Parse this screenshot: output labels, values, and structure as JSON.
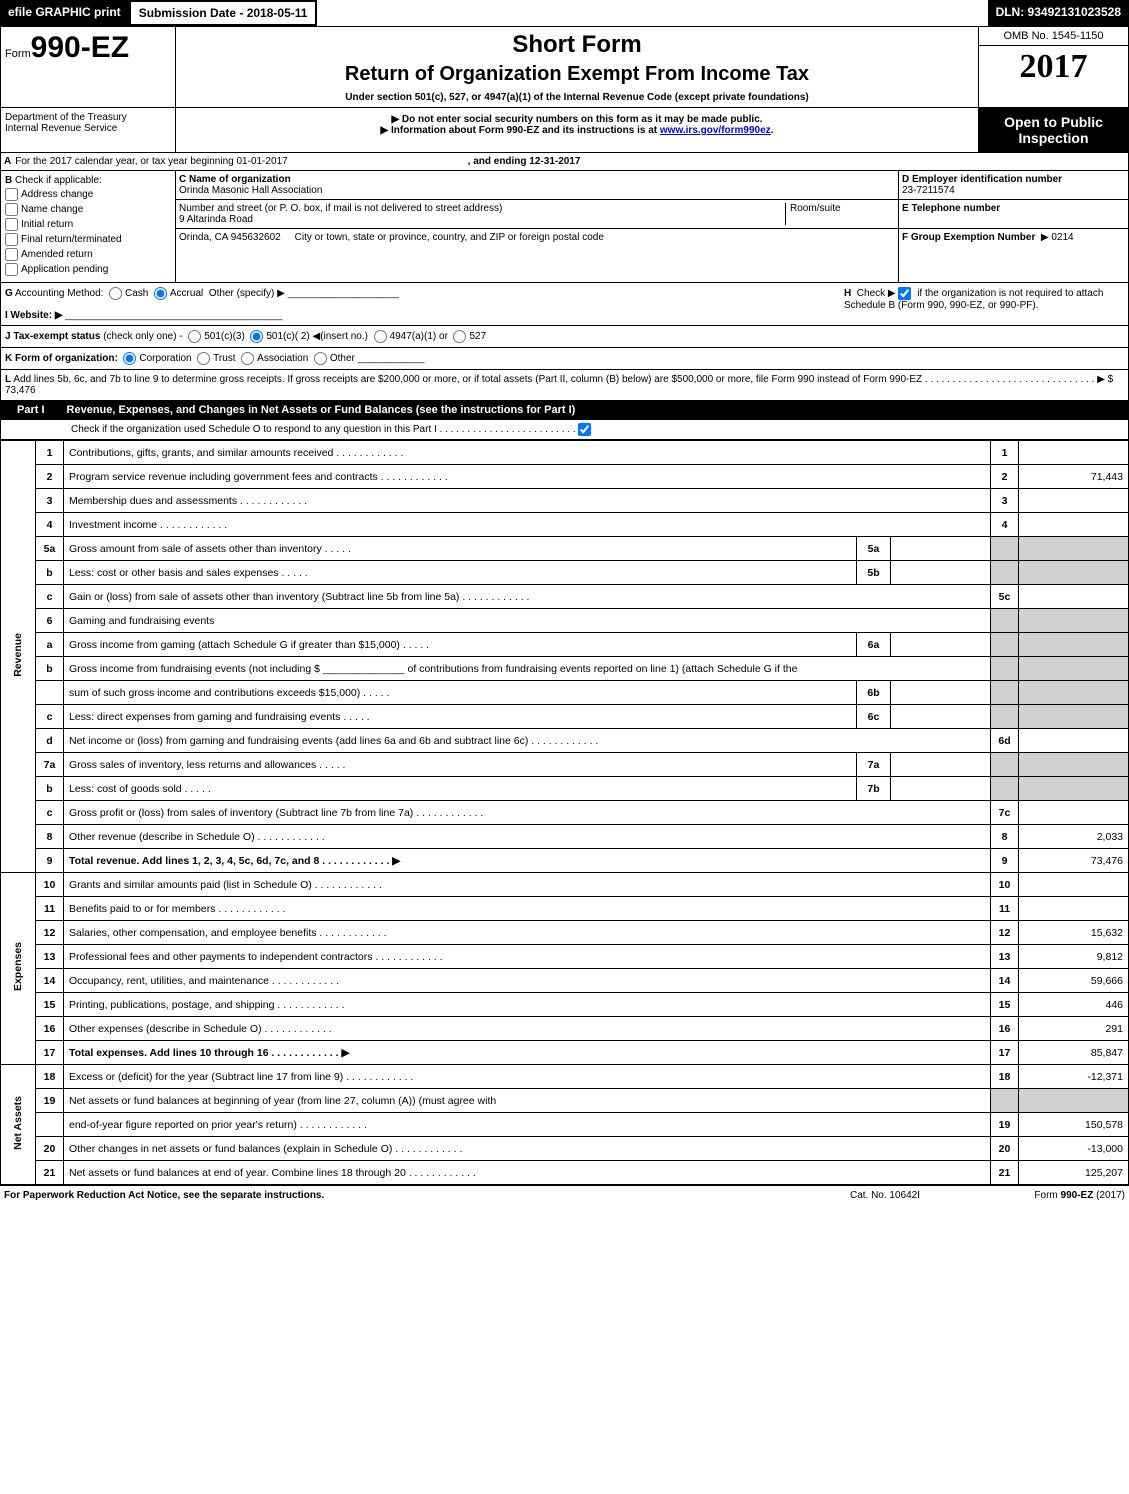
{
  "top": {
    "efile": "efile GRAPHIC print",
    "submission": "Submission Date - 2018-05-11",
    "dln": "DLN: 93492131023528"
  },
  "header": {
    "form_prefix": "Form",
    "form_number": "990-EZ",
    "short_form": "Short Form",
    "title": "Return of Organization Exempt From Income Tax",
    "subtitle": "Under section 501(c), 527, or 4947(a)(1) of the Internal Revenue Code (except private foundations)",
    "omb": "OMB No. 1545-1150",
    "year": "2017",
    "open": "Open to Public Inspection",
    "dept1": "Department of the Treasury",
    "dept2": "Internal Revenue Service",
    "instr1": "▶ Do not enter social security numbers on this form as it may be made public.",
    "instr2_pre": "▶ Information about Form 990-EZ and its instructions is at ",
    "instr2_link": "www.irs.gov/form990ez",
    "instr2_post": "."
  },
  "line_a": {
    "label": "A",
    "text": "For the 2017 calendar year, or tax year beginning 01-01-2017",
    "ending": ", and ending 12-31-2017"
  },
  "line_b": {
    "label": "B",
    "text": "Check if applicable:",
    "opts": [
      "Address change",
      "Name change",
      "Initial return",
      "Final return/terminated",
      "Amended return",
      "Application pending"
    ]
  },
  "line_c": {
    "label": "C Name of organization",
    "val": "Orinda Masonic Hall Association",
    "street_label": "Number and street (or P. O. box, if mail is not delivered to street address)",
    "street_val": "9 Altarinda Road",
    "room_label": "Room/suite",
    "city_label": "City or town, state or province, country, and ZIP or foreign postal code",
    "city_val": "Orinda, CA  945632602"
  },
  "line_d": {
    "label": "D Employer identification number",
    "val": "23-7211574"
  },
  "line_e": {
    "label": "E Telephone number",
    "val": ""
  },
  "line_f": {
    "label": "F Group Exemption Number",
    "val": "▶ 0214"
  },
  "line_g": {
    "label": "G",
    "text": "Accounting Method:",
    "opts": [
      "Cash",
      "Accrual"
    ],
    "other": "Other (specify) ▶"
  },
  "line_h": {
    "label": "H",
    "text": "Check ▶",
    "note": "if the organization is not required to attach Schedule B (Form 990, 990-EZ, or 990-PF)."
  },
  "line_i": {
    "label": "I Website: ▶"
  },
  "line_j": {
    "label": "J Tax-exempt status",
    "text": "(check only one) -",
    "opts": [
      "501(c)(3)",
      "501(c)( 2) ◀(insert no.)",
      "4947(a)(1) or",
      "527"
    ]
  },
  "line_k": {
    "label": "K Form of organization:",
    "opts": [
      "Corporation",
      "Trust",
      "Association",
      "Other"
    ]
  },
  "line_l": {
    "label": "L",
    "text": "Add lines 5b, 6c, and 7b to line 9 to determine gross receipts. If gross receipts are $200,000 or more, or if total assets (Part II, column (B) below) are $500,000 or more, file Form 990 instead of Form 990-EZ",
    "arrow": "▶ $ 73,476"
  },
  "part1": {
    "label": "Part I",
    "title": "Revenue, Expenses, and Changes in Net Assets or Fund Balances (see the instructions for Part I)",
    "note": "Check if the organization used Schedule O to respond to any question in this Part I"
  },
  "revenue": {
    "vlabel": "Revenue",
    "rows": [
      {
        "n": "1",
        "t": "Contributions, gifts, grants, and similar amounts received",
        "nn": "1",
        "v": ""
      },
      {
        "n": "2",
        "t": "Program service revenue including government fees and contracts",
        "nn": "2",
        "v": "71,443"
      },
      {
        "n": "3",
        "t": "Membership dues and assessments",
        "nn": "3",
        "v": ""
      },
      {
        "n": "4",
        "t": "Investment income",
        "nn": "4",
        "v": ""
      },
      {
        "n": "5a",
        "t": "Gross amount from sale of assets other than inventory",
        "in": "5a",
        "iv": "",
        "shaded": true
      },
      {
        "n": "b",
        "t": "Less: cost or other basis and sales expenses",
        "in": "5b",
        "iv": "",
        "shaded": true
      },
      {
        "n": "c",
        "t": "Gain or (loss) from sale of assets other than inventory (Subtract line 5b from line 5a)",
        "nn": "5c",
        "v": ""
      },
      {
        "n": "6",
        "t": "Gaming and fundraising events",
        "shaded": true,
        "noval": true
      },
      {
        "n": "a",
        "t": "Gross income from gaming (attach Schedule G if greater than $15,000)",
        "in": "6a",
        "iv": "",
        "shaded": true
      },
      {
        "n": "b",
        "t": "Gross income from fundraising events (not including $ ______________ of contributions from fundraising events reported on line 1) (attach Schedule G if the",
        "shaded": true,
        "noval": true
      },
      {
        "n": "",
        "t": "sum of such gross income and contributions exceeds $15,000)",
        "in": "6b",
        "iv": "",
        "shaded": true
      },
      {
        "n": "c",
        "t": "Less: direct expenses from gaming and fundraising events",
        "in": "6c",
        "iv": "",
        "shaded": true
      },
      {
        "n": "d",
        "t": "Net income or (loss) from gaming and fundraising events (add lines 6a and 6b and subtract line 6c)",
        "nn": "6d",
        "v": ""
      },
      {
        "n": "7a",
        "t": "Gross sales of inventory, less returns and allowances",
        "in": "7a",
        "iv": "",
        "shaded": true
      },
      {
        "n": "b",
        "t": "Less: cost of goods sold",
        "in": "7b",
        "iv": "",
        "shaded": true
      },
      {
        "n": "c",
        "t": "Gross profit or (loss) from sales of inventory (Subtract line 7b from line 7a)",
        "nn": "7c",
        "v": ""
      },
      {
        "n": "8",
        "t": "Other revenue (describe in Schedule O)",
        "nn": "8",
        "v": "2,033"
      },
      {
        "n": "9",
        "t": "Total revenue. Add lines 1, 2, 3, 4, 5c, 6d, 7c, and 8",
        "nn": "9",
        "v": "73,476",
        "bold": true,
        "arrow": true
      }
    ]
  },
  "expenses": {
    "vlabel": "Expenses",
    "rows": [
      {
        "n": "10",
        "t": "Grants and similar amounts paid (list in Schedule O)",
        "nn": "10",
        "v": ""
      },
      {
        "n": "11",
        "t": "Benefits paid to or for members",
        "nn": "11",
        "v": ""
      },
      {
        "n": "12",
        "t": "Salaries, other compensation, and employee benefits",
        "nn": "12",
        "v": "15,632"
      },
      {
        "n": "13",
        "t": "Professional fees and other payments to independent contractors",
        "nn": "13",
        "v": "9,812"
      },
      {
        "n": "14",
        "t": "Occupancy, rent, utilities, and maintenance",
        "nn": "14",
        "v": "59,666"
      },
      {
        "n": "15",
        "t": "Printing, publications, postage, and shipping",
        "nn": "15",
        "v": "446"
      },
      {
        "n": "16",
        "t": "Other expenses (describe in Schedule O)",
        "nn": "16",
        "v": "291"
      },
      {
        "n": "17",
        "t": "Total expenses. Add lines 10 through 16",
        "nn": "17",
        "v": "85,847",
        "bold": true,
        "arrow": true
      }
    ]
  },
  "netassets": {
    "vlabel": "Net Assets",
    "rows": [
      {
        "n": "18",
        "t": "Excess or (deficit) for the year (Subtract line 17 from line 9)",
        "nn": "18",
        "v": "-12,371"
      },
      {
        "n": "19",
        "t": "Net assets or fund balances at beginning of year (from line 27, column (A)) (must agree with",
        "shaded": true,
        "noval": true
      },
      {
        "n": "",
        "t": "end-of-year figure reported on prior year's return)",
        "nn": "19",
        "v": "150,578"
      },
      {
        "n": "20",
        "t": "Other changes in net assets or fund balances (explain in Schedule O)",
        "nn": "20",
        "v": "-13,000"
      },
      {
        "n": "21",
        "t": "Net assets or fund balances at end of year. Combine lines 18 through 20",
        "nn": "21",
        "v": "125,207"
      }
    ]
  },
  "footer": {
    "left": "For Paperwork Reduction Act Notice, see the separate instructions.",
    "mid": "Cat. No. 10642I",
    "right": "Form 990-EZ (2017)"
  }
}
